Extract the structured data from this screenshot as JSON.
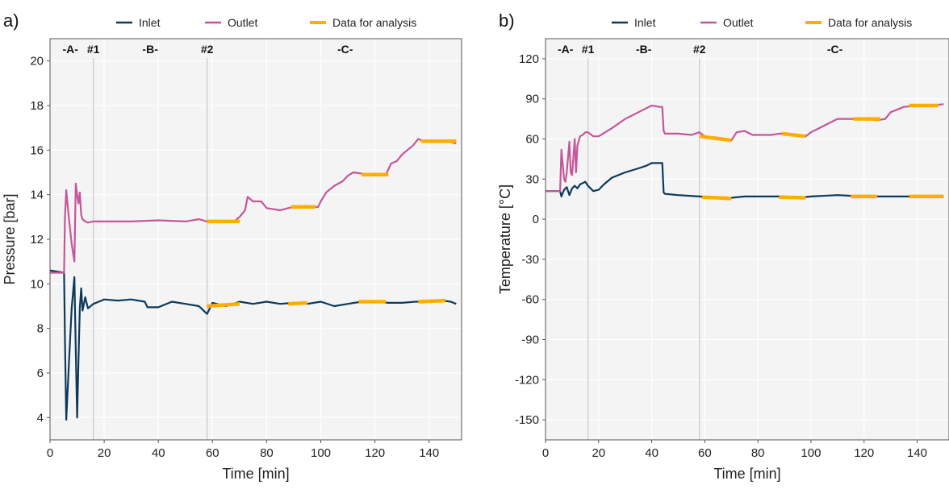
{
  "colors": {
    "inlet": "#0d3a5c",
    "outlet": "#c4579a",
    "analysis": "#ffae00",
    "plot_bg": "#f4f4f4",
    "grid": "#ffffff",
    "divider": "#c8c8c8"
  },
  "legend": [
    {
      "label": "Inlet",
      "color": "#0d3a5c"
    },
    {
      "label": "Outlet",
      "color": "#c4579a"
    },
    {
      "label": "Data for analysis",
      "color": "#ffae00"
    }
  ],
  "chart_data": [
    {
      "type": "line",
      "panel_label": "a)",
      "xlabel": "Time [min]",
      "ylabel": "Pressure [bar]",
      "xlim": [
        0,
        152
      ],
      "ylim": [
        3,
        21
      ],
      "xticks": [
        0,
        20,
        40,
        60,
        80,
        100,
        120,
        140
      ],
      "yticks": [
        4,
        6,
        8,
        10,
        12,
        14,
        16,
        18,
        20
      ],
      "grid": true,
      "legend_position": "top",
      "dividers": [
        {
          "x": 16,
          "label": "#1"
        },
        {
          "x": 58,
          "label": "#2"
        }
      ],
      "phases": [
        {
          "x": 7.5,
          "label": "-A-"
        },
        {
          "x": 37,
          "label": "-B-"
        },
        {
          "x": 109,
          "label": "-C-"
        }
      ],
      "series": [
        {
          "name": "Inlet",
          "x": [
            0,
            5.2,
            5.5,
            6,
            7,
            8,
            9,
            9.5,
            10,
            10.5,
            11,
            11.5,
            12,
            13,
            14,
            16,
            18,
            20,
            25,
            30,
            35,
            36,
            40,
            45,
            50,
            55,
            58,
            60,
            65,
            70,
            75,
            80,
            85,
            90,
            95,
            100,
            105,
            110,
            115,
            120,
            125,
            130,
            135,
            140,
            145,
            148,
            150
          ],
          "values": [
            10.6,
            10.5,
            7.5,
            3.9,
            6.5,
            8.9,
            10.3,
            7.0,
            4.0,
            6.5,
            8.9,
            9.8,
            8.8,
            9.4,
            8.9,
            9.1,
            9.2,
            9.3,
            9.25,
            9.3,
            9.2,
            8.95,
            8.95,
            9.2,
            9.1,
            9.0,
            8.65,
            9.15,
            9.0,
            9.2,
            9.1,
            9.2,
            9.1,
            9.15,
            9.1,
            9.2,
            9.0,
            9.1,
            9.2,
            9.2,
            9.15,
            9.15,
            9.2,
            9.2,
            9.25,
            9.2,
            9.1
          ]
        },
        {
          "name": "Outlet",
          "x": [
            0,
            5.2,
            5.5,
            6,
            7,
            8,
            9,
            9.5,
            10,
            10.5,
            11,
            11.5,
            12,
            13,
            14,
            16,
            20,
            30,
            40,
            50,
            55,
            58,
            60,
            65,
            68,
            70,
            72,
            73,
            75,
            78,
            80,
            85,
            88,
            90,
            95,
            97,
            99,
            100,
            102,
            105,
            108,
            110,
            112,
            115,
            118,
            120,
            124,
            126,
            128,
            130,
            132,
            134,
            136,
            138,
            140,
            145,
            148,
            150
          ],
          "values": [
            10.5,
            10.5,
            13.0,
            14.2,
            12.9,
            11.8,
            11.0,
            14.5,
            14.0,
            13.6,
            14.1,
            13.1,
            12.9,
            12.8,
            12.75,
            12.8,
            12.8,
            12.8,
            12.85,
            12.8,
            12.9,
            12.8,
            12.8,
            12.8,
            12.8,
            13.0,
            13.3,
            13.9,
            13.7,
            13.7,
            13.4,
            13.3,
            13.4,
            13.45,
            13.5,
            13.45,
            13.45,
            13.7,
            14.1,
            14.4,
            14.6,
            14.85,
            15.0,
            14.95,
            14.9,
            14.95,
            14.9,
            15.4,
            15.5,
            15.8,
            16.0,
            16.2,
            16.5,
            16.4,
            16.4,
            16.4,
            16.35,
            16.3
          ]
        },
        {
          "name": "Data for analysis",
          "segments": [
            {
              "x": [
                58,
                70
              ],
              "values": [
                12.8,
                12.8
              ]
            },
            {
              "x": [
                89,
                98
              ],
              "values": [
                13.45,
                13.45
              ]
            },
            {
              "x": [
                115,
                125
              ],
              "values": [
                14.9,
                14.9
              ]
            },
            {
              "x": [
                137,
                150
              ],
              "values": [
                16.4,
                16.4
              ]
            },
            {
              "x": [
                58,
                70
              ],
              "values": [
                9.0,
                9.1
              ]
            },
            {
              "x": [
                88,
                95
              ],
              "values": [
                9.1,
                9.15
              ]
            },
            {
              "x": [
                114,
                124
              ],
              "values": [
                9.2,
                9.2
              ]
            },
            {
              "x": [
                136,
                146
              ],
              "values": [
                9.2,
                9.25
              ]
            }
          ]
        }
      ]
    },
    {
      "type": "line",
      "panel_label": "b)",
      "xlabel": "Time [min]",
      "ylabel": "Temperature [°C]",
      "xlim": [
        0,
        152
      ],
      "ylim": [
        -165,
        135
      ],
      "xticks": [
        0,
        20,
        40,
        60,
        80,
        100,
        120,
        140
      ],
      "yticks": [
        120,
        90,
        60,
        30,
        0,
        -30,
        -60,
        -90,
        -120,
        -150
      ],
      "grid": true,
      "legend_position": "top",
      "dividers": [
        {
          "x": 16,
          "label": "#1"
        },
        {
          "x": 58,
          "label": "#2"
        }
      ],
      "phases": [
        {
          "x": 7.5,
          "label": "-A-"
        },
        {
          "x": 37,
          "label": "-B-"
        },
        {
          "x": 109,
          "label": "-C-"
        }
      ],
      "series": [
        {
          "name": "Inlet",
          "x": [
            0,
            5.5,
            6,
            7,
            8,
            9,
            10,
            11,
            12,
            13,
            14,
            15,
            16,
            18,
            20,
            22,
            25,
            30,
            35,
            38,
            40,
            42,
            43,
            44,
            44.5,
            45,
            50,
            58,
            65,
            70,
            75,
            80,
            90,
            95,
            100,
            110,
            120,
            130,
            140,
            150
          ],
          "values": [
            21,
            21,
            17,
            22,
            24,
            18,
            23,
            25,
            23,
            26,
            27,
            28,
            25,
            21,
            22,
            26,
            31,
            35,
            38,
            40,
            42,
            42,
            42,
            42,
            20,
            19,
            18,
            17,
            16,
            16,
            17,
            17,
            17,
            16,
            17,
            18,
            17,
            17,
            17,
            17
          ]
        },
        {
          "name": "Outlet",
          "x": [
            0,
            5.5,
            6,
            7,
            7.5,
            8,
            9,
            9.5,
            10,
            11,
            11.5,
            12,
            13,
            14,
            15,
            16,
            18,
            20,
            25,
            30,
            35,
            40,
            43,
            44,
            44.5,
            45,
            50,
            55,
            58,
            60,
            65,
            68,
            70,
            72,
            75,
            78,
            80,
            85,
            88,
            90,
            95,
            98,
            100,
            105,
            110,
            115,
            120,
            125,
            128,
            130,
            135,
            140,
            145,
            150
          ],
          "values": [
            21,
            21,
            52,
            30,
            28,
            35,
            58,
            35,
            33,
            60,
            35,
            55,
            62,
            63,
            65,
            65,
            62,
            62,
            68,
            75,
            80,
            85,
            84,
            84,
            66,
            64,
            64,
            63,
            65,
            62,
            61,
            60,
            59,
            65,
            66,
            63,
            63,
            63,
            64,
            64,
            63,
            62,
            65,
            70,
            75,
            75,
            75,
            74,
            75,
            80,
            84,
            85,
            85,
            86
          ]
        },
        {
          "name": "Data for analysis",
          "segments": [
            {
              "x": [
                58,
                70
              ],
              "values": [
                62,
                59
              ]
            },
            {
              "x": [
                89,
                98
              ],
              "values": [
                64,
                62
              ]
            },
            {
              "x": [
                116,
                126
              ],
              "values": [
                75,
                75
              ]
            },
            {
              "x": [
                137,
                148
              ],
              "values": [
                85,
                85
              ]
            },
            {
              "x": [
                59,
                70
              ],
              "values": [
                16.5,
                15.5
              ]
            },
            {
              "x": [
                88,
                98
              ],
              "values": [
                16.5,
                16
              ]
            },
            {
              "x": [
                115,
                125
              ],
              "values": [
                17,
                17
              ]
            },
            {
              "x": [
                137,
                150
              ],
              "values": [
                17,
                17
              ]
            }
          ]
        }
      ]
    }
  ]
}
